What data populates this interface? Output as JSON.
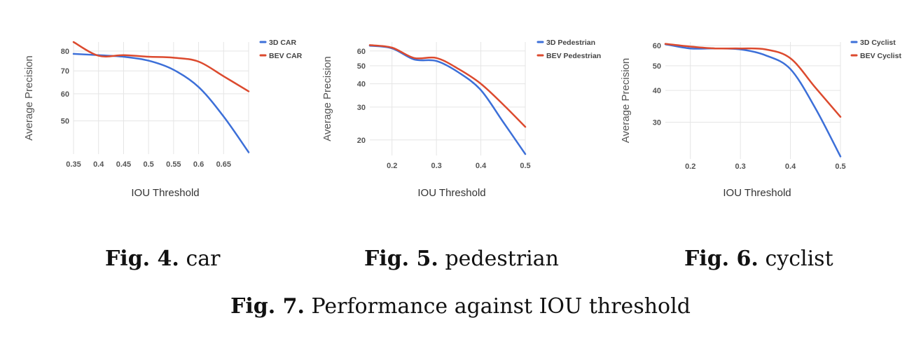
{
  "colors": {
    "series_a": "#3c6fd8",
    "series_b": "#dc4a2e",
    "grid": "#e5e5e5"
  },
  "chart_data": [
    {
      "type": "line",
      "xlabel": "IOU Threshold",
      "ylabel": "Average Precision",
      "x_ticks": [
        "0.35",
        "0.4",
        "0.45",
        "0.5",
        "0.55",
        "0.6",
        "0.65"
      ],
      "y_ticks": [
        "80",
        "70",
        "60",
        "50"
      ],
      "xlim": [
        0.35,
        0.7
      ],
      "ylim": [
        40,
        85
      ],
      "y_scale": "log",
      "grid": true,
      "legend_position": "right",
      "series": [
        {
          "name": "3D CAR",
          "color": "#3c6fd8",
          "x": [
            0.35,
            0.4,
            0.45,
            0.5,
            0.55,
            0.6,
            0.65,
            0.7
          ],
          "y": [
            78.5,
            77.8,
            77.0,
            75.0,
            70.5,
            62.8,
            51.5,
            40.5
          ]
        },
        {
          "name": "BEV CAR",
          "color": "#dc4a2e",
          "x": [
            0.35,
            0.4,
            0.45,
            0.5,
            0.55,
            0.6,
            0.65,
            0.7
          ],
          "y": [
            85.0,
            77.5,
            77.8,
            77.0,
            76.5,
            74.5,
            67.5,
            61.0
          ]
        }
      ]
    },
    {
      "type": "line",
      "xlabel": "IOU Threshold",
      "ylabel": "Average Precision",
      "x_ticks": [
        "0.2",
        "0.3",
        "0.4",
        "0.5"
      ],
      "y_ticks": [
        "60",
        "50",
        "40",
        "30",
        "20"
      ],
      "xlim": [
        0.15,
        0.5
      ],
      "ylim": [
        16.5,
        67
      ],
      "y_scale": "log",
      "grid": true,
      "legend_position": "right",
      "series": [
        {
          "name": "3D Pedestrian",
          "color": "#3c6fd8",
          "x": [
            0.15,
            0.2,
            0.25,
            0.3,
            0.35,
            0.4,
            0.45,
            0.5
          ],
          "y": [
            64.0,
            62.0,
            54.0,
            53.0,
            46.0,
            37.0,
            25.0,
            16.8
          ]
        },
        {
          "name": "BEV Pedestrian",
          "color": "#dc4a2e",
          "x": [
            0.15,
            0.2,
            0.25,
            0.3,
            0.35,
            0.4,
            0.45,
            0.5
          ],
          "y": [
            64.5,
            62.5,
            55.0,
            55.0,
            48.0,
            40.0,
            31.0,
            23.5
          ]
        }
      ]
    },
    {
      "type": "line",
      "xlabel": "IOU Threshold",
      "ylabel": "Average Precision",
      "x_ticks": [
        "0.2",
        "0.3",
        "0.4",
        "0.5"
      ],
      "y_ticks": [
        "60",
        "50",
        "40",
        "30"
      ],
      "xlim": [
        0.15,
        0.5
      ],
      "ylim": [
        21.5,
        62
      ],
      "y_scale": "log",
      "grid": true,
      "legend_position": "right",
      "series": [
        {
          "name": "3D Cyclist",
          "color": "#3c6fd8",
          "x": [
            0.15,
            0.2,
            0.25,
            0.3,
            0.35,
            0.4,
            0.45,
            0.5
          ],
          "y": [
            60.8,
            58.5,
            58.5,
            58.0,
            55.0,
            48.5,
            34.0,
            22.0
          ]
        },
        {
          "name": "BEV Cyclist",
          "color": "#dc4a2e",
          "x": [
            0.15,
            0.2,
            0.25,
            0.3,
            0.35,
            0.4,
            0.45,
            0.5
          ],
          "y": [
            61.0,
            59.5,
            58.5,
            58.5,
            58.0,
            53.5,
            41.0,
            31.5
          ]
        }
      ]
    }
  ],
  "captions": [
    {
      "label": "Fig. 4.",
      "text": "car"
    },
    {
      "label": "Fig. 5.",
      "text": "pedestrian"
    },
    {
      "label": "Fig. 6.",
      "text": "cyclist"
    }
  ],
  "main_caption": {
    "label": "Fig. 7.",
    "text": "Performance against IOU threshold"
  }
}
